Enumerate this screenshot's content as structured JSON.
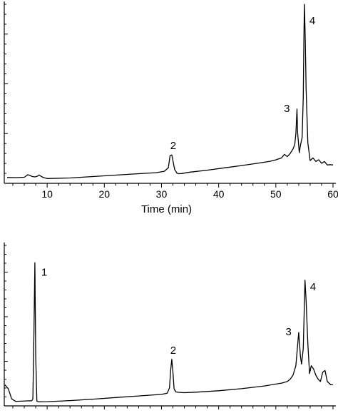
{
  "chart_data": [
    {
      "type": "line",
      "title": "",
      "xlabel": "Time (min)",
      "ylabel": "",
      "xlim": [
        2.5,
        60.5
      ],
      "ylim": [
        0,
        100
      ],
      "x_ticks": [
        10,
        20,
        30,
        40,
        50,
        60
      ],
      "x_tick_labels": [
        "10",
        "20",
        "30",
        "40",
        "50",
        "60"
      ],
      "grid": false,
      "legend": "none",
      "line_color": "#000000",
      "series": [
        {
          "x": [
            3.0,
            4.5,
            6.0,
            6.6,
            7.0,
            7.4,
            7.9,
            8.3,
            8.6,
            9.0,
            9.4,
            10,
            14,
            18,
            22,
            26,
            29,
            30.5,
            31.2,
            31.5,
            31.8,
            32.0,
            32.3,
            32.7,
            33.0,
            33.5,
            35,
            38,
            41,
            44,
            47,
            49,
            50,
            51,
            51.5,
            52,
            52.5,
            53.0,
            53.3,
            53.5,
            53.7,
            53.8,
            54.1,
            54.3,
            54.6,
            54.8,
            54.9,
            55.0,
            55.15,
            55.3,
            55.6,
            56.0,
            56.5,
            57.0,
            57.5,
            58,
            58.5,
            59,
            59.5,
            60.0
          ],
          "y": [
            2.5,
            2.4,
            2.6,
            4.0,
            3.6,
            3.0,
            2.8,
            3.2,
            3.9,
            3.0,
            2.4,
            1.9,
            2.2,
            3.0,
            3.8,
            4.6,
            5.2,
            6.0,
            8.0,
            14.8,
            15.2,
            12.0,
            7.0,
            5.0,
            4.6,
            4.7,
            5.5,
            6.6,
            7.9,
            9.2,
            10.6,
            11.6,
            12.4,
            13.5,
            15.5,
            14.2,
            16.0,
            18.5,
            21.0,
            27.0,
            41.0,
            28.0,
            16.5,
            20.5,
            25.0,
            48.0,
            79.0,
            100.0,
            80.0,
            52.0,
            22.0,
            12.0,
            13.5,
            11.5,
            12.5,
            10.5,
            11.5,
            9.5,
            9.7,
            9.5
          ]
        }
      ],
      "annotations": [
        {
          "text": "2",
          "x": 31.8,
          "y": 15.2
        },
        {
          "text": "3",
          "x": 53.7,
          "y": 41.0
        },
        {
          "text": "4",
          "x": 55.0,
          "y": 100.0
        }
      ]
    },
    {
      "type": "line",
      "title": "",
      "xlabel": "",
      "ylabel": "",
      "xlim": [
        2.5,
        60.5
      ],
      "ylim": [
        0,
        100
      ],
      "grid": false,
      "legend": "none",
      "line_color": "#000000",
      "series": [
        {
          "x": [
            2.6,
            3.2,
            3.8,
            4.5,
            5.5,
            6.5,
            7.3,
            7.5,
            7.7,
            7.85,
            8.0,
            8.2,
            8.5,
            10,
            14,
            18,
            22,
            26,
            28,
            30,
            31,
            31.4,
            31.6,
            31.8,
            32.0,
            32.2,
            32.5,
            33,
            34,
            36,
            40,
            44,
            48,
            51,
            52,
            52.5,
            53,
            53.5,
            54.0,
            54.3,
            54.5,
            54.8,
            55.1,
            55.3,
            55.6,
            55.9,
            56.2,
            56.6,
            57.0,
            57.4,
            57.8,
            58.2,
            58.6,
            59.0,
            59.3,
            59.6,
            60.0
          ],
          "y": [
            12.0,
            9.5,
            3.0,
            1.5,
            1.6,
            1.8,
            1.9,
            3.0,
            48.0,
            89.0,
            30.0,
            1.6,
            1.2,
            1.3,
            2.0,
            2.9,
            3.9,
            4.9,
            5.4,
            5.9,
            6.6,
            10.0,
            21.0,
            28.0,
            20.0,
            9.5,
            7.5,
            7.2,
            7.0,
            7.3,
            8.2,
            9.5,
            11.2,
            13.0,
            14.0,
            15.5,
            18.0,
            24.0,
            45.0,
            30.0,
            25.0,
            35.0,
            78.0,
            65.0,
            38.0,
            19.0,
            24.0,
            22.0,
            18.0,
            15.5,
            14.0,
            20.0,
            21.0,
            14.0,
            13.0,
            12.0,
            12.0
          ]
        }
      ],
      "annotations": [
        {
          "text": "1",
          "x": 7.85,
          "y": 89.0
        },
        {
          "text": "2",
          "x": 31.8,
          "y": 28.0
        },
        {
          "text": "3",
          "x": 54.0,
          "y": 45.0
        },
        {
          "text": "4",
          "x": 55.1,
          "y": 78.0
        }
      ]
    }
  ]
}
